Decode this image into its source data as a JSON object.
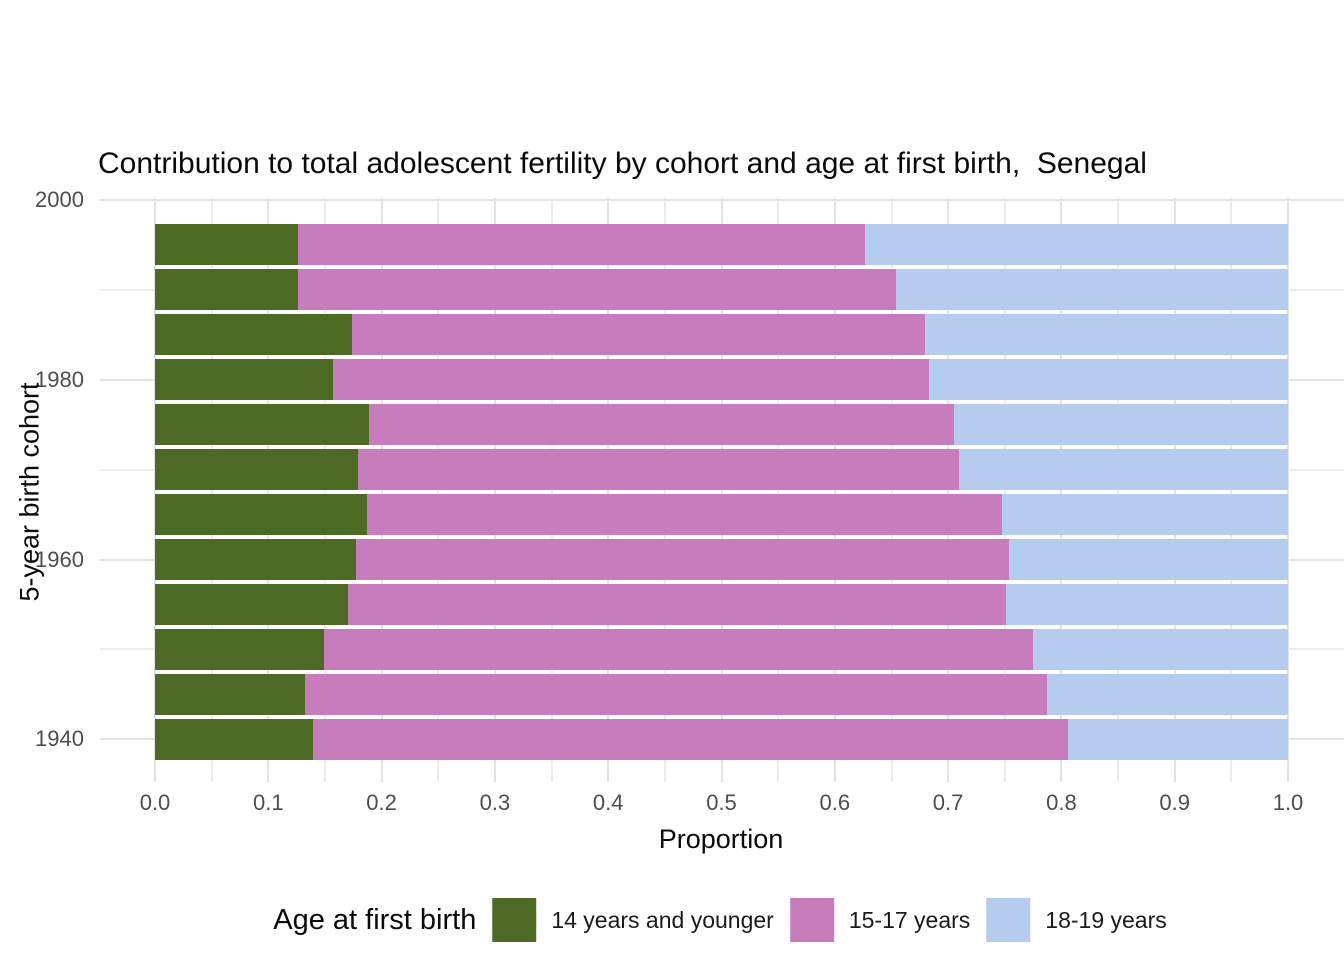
{
  "chart_data": {
    "type": "bar",
    "orientation": "horizontal",
    "stacked": true,
    "title": "Contribution to total adolescent fertility by cohort and age at first birth,  Senegal",
    "xlabel": "Proportion",
    "ylabel": "5-year birth cohort",
    "xlim": [
      0.0,
      1.0
    ],
    "grid": true,
    "legend": {
      "title": "Age at first birth",
      "position": "bottom"
    },
    "x_tick_labels": [
      "0.0",
      "0.1",
      "0.2",
      "0.3",
      "0.4",
      "0.5",
      "0.6",
      "0.7",
      "0.8",
      "0.9",
      "1.0"
    ],
    "x_tick_values": [
      0.0,
      0.1,
      0.2,
      0.3,
      0.4,
      0.5,
      0.6,
      0.7,
      0.8,
      0.9,
      1.0
    ],
    "x_minor_values": [
      0.05,
      0.15,
      0.25,
      0.35,
      0.45,
      0.55,
      0.65,
      0.75,
      0.85,
      0.95
    ],
    "y_tick_labels": [
      "2000",
      "1980",
      "1960",
      "1940"
    ],
    "y_tick_values": [
      2000,
      1980,
      1960,
      1940
    ],
    "y_minor_values": [
      1990,
      1970,
      1950
    ],
    "cohorts": [
      1995,
      1990,
      1985,
      1980,
      1975,
      1970,
      1965,
      1960,
      1955,
      1950,
      1945,
      1940
    ],
    "series": [
      {
        "name": "14 years and younger",
        "color": "#4D6A24",
        "values": [
          0.126,
          0.126,
          0.174,
          0.157,
          0.189,
          0.179,
          0.187,
          0.177,
          0.17,
          0.149,
          0.132,
          0.139
        ]
      },
      {
        "name": "15-17 years",
        "color": "#C77CBB",
        "values": [
          0.501,
          0.528,
          0.506,
          0.526,
          0.516,
          0.531,
          0.561,
          0.577,
          0.581,
          0.626,
          0.655,
          0.667
        ]
      },
      {
        "name": "18-19 years",
        "color": "#B5CCEE",
        "values": [
          0.373,
          0.346,
          0.32,
          0.317,
          0.295,
          0.29,
          0.252,
          0.246,
          0.249,
          0.225,
          0.213,
          0.194
        ]
      }
    ],
    "style": {
      "grid_major_color": "#E3E3E3",
      "grid_minor_color": "#ECECEC",
      "tick_text_color": "#4D4D4D",
      "background": "#FFFFFF"
    }
  }
}
